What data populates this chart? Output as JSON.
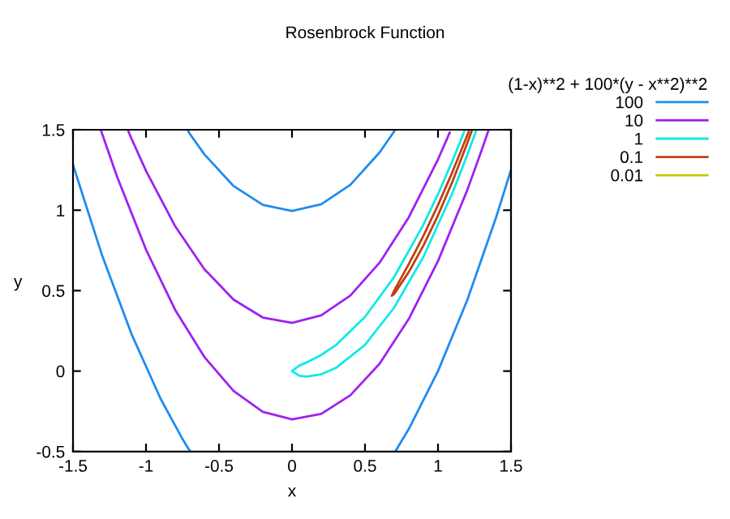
{
  "chart_data": {
    "type": "line",
    "title": "Rosenbrock Function",
    "xlabel": "x",
    "ylabel": "y",
    "legend_title": "(1-x)**2 + 100*(y - x**2)**2",
    "legend": "top right",
    "grid": false,
    "xlim": [
      -1.5,
      1.5
    ],
    "ylim": [
      -0.5,
      1.5
    ],
    "xticks": [
      -1.5,
      -1,
      -0.5,
      0,
      0.5,
      1,
      1.5
    ],
    "yticks": [
      -0.5,
      0,
      0.5,
      1,
      1.5
    ],
    "series": [
      {
        "name": "100",
        "color": "#1e8cf0",
        "x": [
          -0.71,
          -0.7,
          -0.6,
          -0.4,
          -0.2,
          0,
          0.2,
          0.4,
          0.6,
          0.7,
          null,
          -1.5,
          -1.3,
          -1.1,
          -0.9,
          -0.75,
          -0.72,
          -0.7,
          null,
          0.71,
          0.8,
          1.0,
          1.2,
          1.4,
          1.5
        ],
        "values": [
          1.49,
          1.475,
          1.347,
          1.15,
          1.033,
          0.995,
          1.037,
          1.158,
          1.359,
          1.49,
          null,
          1.282,
          0.717,
          0.232,
          -0.172,
          -0.422,
          -0.467,
          -0.495,
          null,
          -0.496,
          -0.36,
          0,
          0.44,
          0.961,
          1.251
        ]
      },
      {
        "name": "10",
        "color": "#a020f0",
        "x": [
          -1.12,
          -1.1,
          -1.0,
          -0.8,
          -0.6,
          -0.4,
          -0.2,
          0,
          0.2,
          0.4,
          0.6,
          0.8,
          1.0,
          1.08,
          null,
          -1.31,
          -1.2,
          -1.0,
          -0.8,
          -0.6,
          -0.4,
          -0.2,
          0,
          0.2,
          0.4,
          0.6,
          0.8,
          1.0,
          1.2,
          1.3,
          1.345
        ],
        "values": [
          1.489,
          1.446,
          1.245,
          0.9,
          0.633,
          0.444,
          0.333,
          0.3,
          0.346,
          0.47,
          0.674,
          0.956,
          1.316,
          1.482,
          null,
          1.5,
          1.213,
          0.755,
          0.38,
          0.087,
          -0.124,
          -0.253,
          -0.3,
          -0.266,
          -0.15,
          0.046,
          0.324,
          0.684,
          1.124,
          1.375,
          1.494
        ]
      },
      {
        "name": "1",
        "color": "#10e8e8",
        "x": [
          1.18,
          1.15,
          1.1,
          1.0,
          0.9,
          0.7,
          0.5,
          0.3,
          0.2,
          0.1,
          0.05,
          0,
          0.05,
          0.1,
          0.2,
          0.3,
          0.5,
          0.7,
          0.9,
          1.1,
          1.2,
          1.26
        ],
        "values": [
          1.491,
          1.421,
          1.31,
          1.1,
          0.91,
          0.585,
          0.337,
          0.161,
          0.1,
          0.054,
          0.034,
          0,
          -0.029,
          -0.034,
          -0.02,
          0.019,
          0.163,
          0.395,
          0.71,
          1.11,
          1.342,
          1.491
        ]
      },
      {
        "name": "0.1",
        "color": "#c04010",
        "x": [
          1.21,
          1.2,
          1.1,
          1.0,
          0.9,
          0.8,
          0.7,
          0.684,
          0.7,
          0.8,
          0.9,
          1.0,
          1.1,
          1.2,
          1.23
        ],
        "values": [
          1.488,
          1.465,
          1.24,
          1.032,
          0.84,
          0.665,
          0.5,
          0.468,
          0.48,
          0.616,
          0.78,
          0.968,
          1.18,
          1.416,
          1.491
        ]
      },
      {
        "name": "0.01",
        "color": "#c8c800"
      }
    ]
  }
}
